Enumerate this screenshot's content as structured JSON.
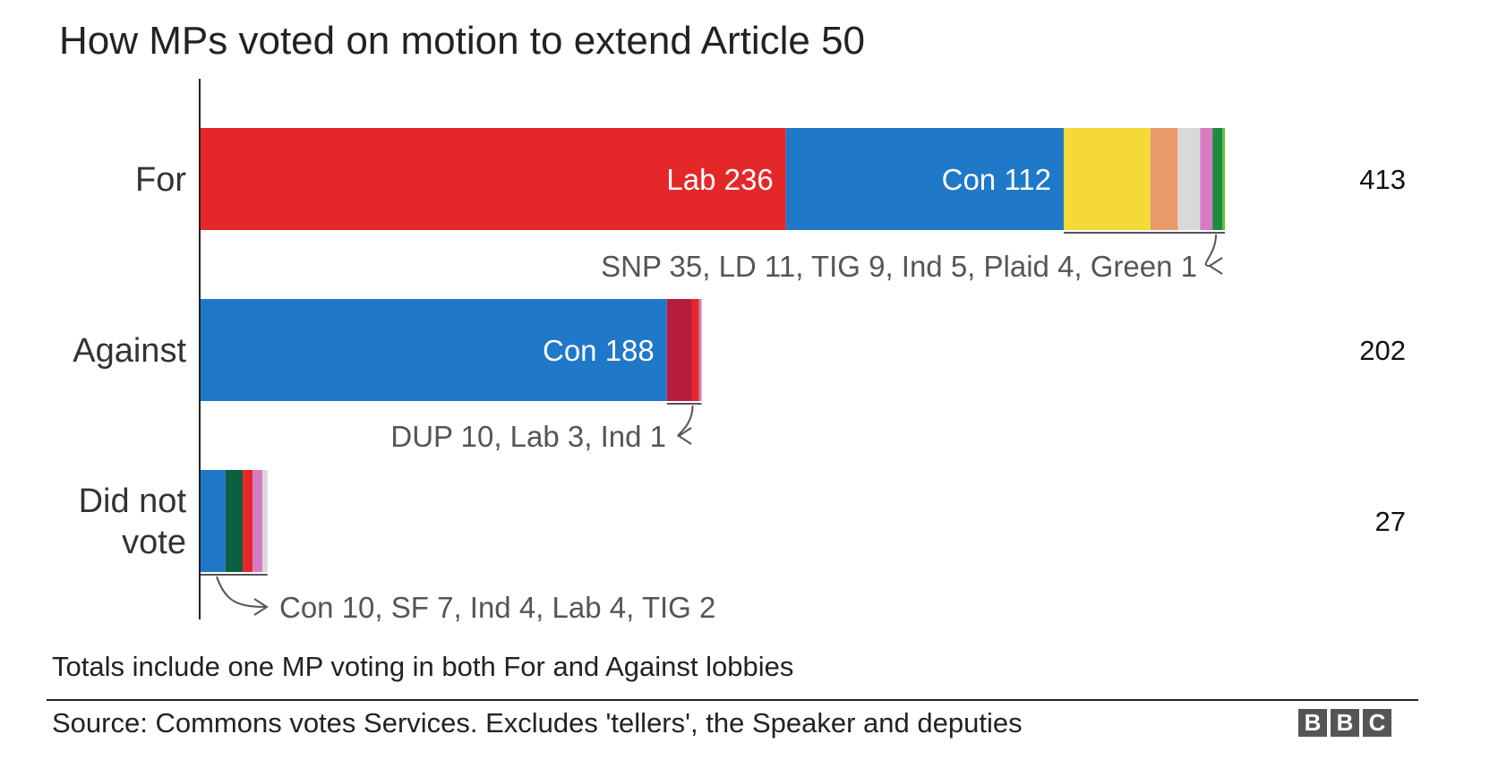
{
  "chart_data": {
    "type": "bar",
    "orientation": "horizontal",
    "stacked": true,
    "title": "How MPs voted on motion to extend Article 50",
    "grid": false,
    "legend": "none",
    "categories": [
      "For",
      "Against",
      "Did not vote"
    ],
    "rows": [
      {
        "label": "For",
        "total": "413",
        "breakdown_text": "SNP 35, LD 11, TIG 9, Ind 5, Plaid 4, Green 1",
        "segments": [
          {
            "party": "Lab",
            "value": 236,
            "color": "#e4282a",
            "label": "Lab 236"
          },
          {
            "party": "Con",
            "value": 112,
            "color": "#1f78c8",
            "label": "Con 112"
          },
          {
            "party": "SNP",
            "value": 35,
            "color": "#f5d93a"
          },
          {
            "party": "LD",
            "value": 11,
            "color": "#e89a6a"
          },
          {
            "party": "TIG",
            "value": 9,
            "color": "#d9d9d9"
          },
          {
            "party": "Ind",
            "value": 5,
            "color": "#d77bc4"
          },
          {
            "party": "Plaid",
            "value": 4,
            "color": "#1f8a3c"
          },
          {
            "party": "Green",
            "value": 1,
            "color": "#5bc236"
          }
        ]
      },
      {
        "label": "Against",
        "total": "202",
        "breakdown_text": "DUP 10, Lab 3, Ind 1",
        "segments": [
          {
            "party": "Con",
            "value": 188,
            "color": "#1f78c8",
            "label": "Con 188"
          },
          {
            "party": "DUP",
            "value": 10,
            "color": "#b51c3e"
          },
          {
            "party": "Lab",
            "value": 3,
            "color": "#e4282a"
          },
          {
            "party": "Ind",
            "value": 1,
            "color": "#d77bc4"
          }
        ]
      },
      {
        "label": "Did not vote",
        "total": "27",
        "breakdown_text": "Con 10, SF 7, Ind 4, Lab 4, TIG 2",
        "segments": [
          {
            "party": "Con",
            "value": 10,
            "color": "#1f78c8"
          },
          {
            "party": "SF",
            "value": 7,
            "color": "#0b6040"
          },
          {
            "party": "Ind",
            "value": 4,
            "color": "#e4282a"
          },
          {
            "party": "Lab",
            "value": 4,
            "color": "#d77bc4"
          },
          {
            "party": "TIG",
            "value": 2,
            "color": "#d9d9d9"
          }
        ]
      }
    ]
  },
  "footer": {
    "note": "Totals include one MP voting in both For and Against lobbies",
    "source": "Source: Commons votes Services. Excludes 'tellers', the Speaker and deputies",
    "logo": [
      "B",
      "B",
      "C"
    ]
  }
}
